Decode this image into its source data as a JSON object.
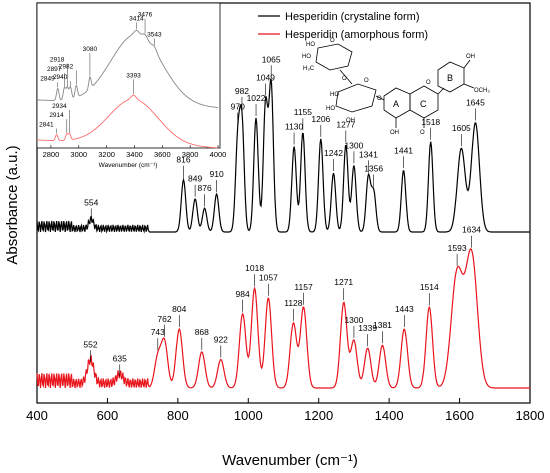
{
  "chart_data": [
    {
      "type": "line",
      "xlabel": "Wavenumber (cm⁻¹)",
      "ylabel": "Absorbance (a.u.)",
      "xlim": [
        400,
        1800
      ],
      "xticks": [
        "400",
        "600",
        "800",
        "1000",
        "1200",
        "1400",
        "1600",
        "1800"
      ],
      "legend": {
        "placement": "top-right",
        "entries": [
          "Hesperidin (crystaline form)",
          "Hesperidin (amorphous form)"
        ]
      },
      "series": [
        {
          "name": "Hesperidin (crystaline form)",
          "color": "#000000",
          "baseline": 0.0,
          "peaks": [
            {
              "x": 554,
              "h": 0.1,
              "label": "554"
            },
            {
              "x": 816,
              "h": 0.55,
              "label": "816"
            },
            {
              "x": 849,
              "h": 0.35,
              "label": "849"
            },
            {
              "x": 876,
              "h": 0.25,
              "label": "876"
            },
            {
              "x": 910,
              "h": 0.4,
              "label": "910"
            },
            {
              "x": 970,
              "h": 0.92,
              "label": "970"
            },
            {
              "x": 982,
              "h": 1.12,
              "label": "982"
            },
            {
              "x": 1022,
              "h": 1.2,
              "label": "1022"
            },
            {
              "x": 1049,
              "h": 1.35,
              "label": "1049"
            },
            {
              "x": 1065,
              "h": 1.55,
              "label": "1065"
            },
            {
              "x": 1130,
              "h": 0.9,
              "label": "1130"
            },
            {
              "x": 1155,
              "h": 1.05,
              "label": "1155"
            },
            {
              "x": 1206,
              "h": 0.98,
              "label": "1206"
            },
            {
              "x": 1242,
              "h": 0.62,
              "label": "1242"
            },
            {
              "x": 1277,
              "h": 0.92,
              "label": "1277"
            },
            {
              "x": 1300,
              "h": 0.7,
              "label": "1300"
            },
            {
              "x": 1341,
              "h": 0.58,
              "label": "1341"
            },
            {
              "x": 1356,
              "h": 0.42,
              "label": "1356"
            },
            {
              "x": 1441,
              "h": 0.65,
              "label": "1441"
            },
            {
              "x": 1518,
              "h": 0.95,
              "label": "1518"
            },
            {
              "x": 1605,
              "h": 0.88,
              "label": "1605"
            },
            {
              "x": 1645,
              "h": 1.15,
              "label": "1645"
            }
          ]
        },
        {
          "name": "Hesperidin (amorphous form)",
          "color": "#e8141c",
          "baseline": 0.0,
          "peaks": [
            {
              "x": 552,
              "h": 0.25,
              "label": "552"
            },
            {
              "x": 635,
              "h": 0.1,
              "label": "635"
            },
            {
              "x": 743,
              "h": 0.32,
              "label": "743"
            },
            {
              "x": 762,
              "h": 0.48,
              "label": "762"
            },
            {
              "x": 804,
              "h": 0.62,
              "label": "804"
            },
            {
              "x": 868,
              "h": 0.38,
              "label": "868"
            },
            {
              "x": 922,
              "h": 0.3,
              "label": "922"
            },
            {
              "x": 984,
              "h": 0.78,
              "label": "984"
            },
            {
              "x": 1018,
              "h": 1.05,
              "label": "1018"
            },
            {
              "x": 1057,
              "h": 0.95,
              "label": "1057"
            },
            {
              "x": 1128,
              "h": 0.68,
              "label": "1128"
            },
            {
              "x": 1157,
              "h": 0.85,
              "label": "1157"
            },
            {
              "x": 1271,
              "h": 0.9,
              "label": "1271"
            },
            {
              "x": 1300,
              "h": 0.5,
              "label": "1300"
            },
            {
              "x": 1339,
              "h": 0.42,
              "label": "1339"
            },
            {
              "x": 1381,
              "h": 0.45,
              "label": "1381"
            },
            {
              "x": 1443,
              "h": 0.62,
              "label": "1443"
            },
            {
              "x": 1514,
              "h": 0.85,
              "label": "1514"
            },
            {
              "x": 1593,
              "h": 1.2,
              "label": "1593"
            },
            {
              "x": 1634,
              "h": 1.4,
              "label": "1634"
            }
          ]
        }
      ]
    },
    {
      "type": "line",
      "inset": true,
      "xlabel": "Wavenumber (cm⁻¹)",
      "xlim": [
        2700,
        4000
      ],
      "xticks": [
        "2800",
        "3000",
        "3200",
        "3400",
        "3600",
        "3800",
        "4000"
      ],
      "series": [
        {
          "name": "Hesperidin (crystaline form)",
          "color": "#888888",
          "peaks": [
            {
              "x": 2849,
              "label": "2849"
            },
            {
              "x": 2897,
              "label": "2897"
            },
            {
              "x": 2918,
              "label": "2918"
            },
            {
              "x": 2940,
              "label": "2940"
            },
            {
              "x": 2982,
              "label": "2982"
            },
            {
              "x": 3080,
              "label": "3080"
            },
            {
              "x": 3414,
              "label": "3414"
            },
            {
              "x": 3476,
              "label": "3476"
            },
            {
              "x": 3543,
              "label": "3543"
            }
          ]
        },
        {
          "name": "Hesperidin (amorphous form)",
          "color": "#ff6e6e",
          "peaks": [
            {
              "x": 2841,
              "label": "2841"
            },
            {
              "x": 2914,
              "label": "2914"
            },
            {
              "x": 2934,
              "label": "2934"
            },
            {
              "x": 3393,
              "label": "3393"
            }
          ]
        }
      ]
    }
  ],
  "structure": {
    "ring_labels": [
      "A",
      "C",
      "B"
    ],
    "atom_labels": [
      "HO",
      "HO",
      "H₃C",
      "O",
      "O",
      "HO",
      "HO",
      "OH",
      "O",
      "O",
      "O",
      "OH",
      "OH",
      "O",
      "OCH₃"
    ]
  }
}
